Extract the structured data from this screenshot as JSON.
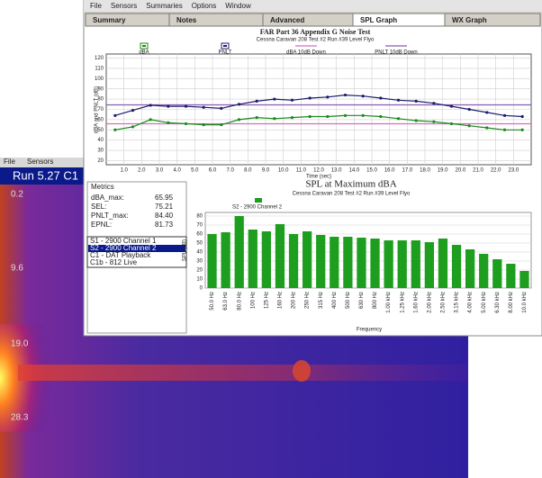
{
  "background_window": {
    "menu": [
      "File",
      "Sensors"
    ],
    "title": "Run 5.27 C1",
    "y_labels": [
      "0.2",
      "9.6",
      "19.0",
      "28.3"
    ]
  },
  "window": {
    "menu": [
      "File",
      "Sensors",
      "Summaries",
      "Options",
      "Window"
    ],
    "tabs": [
      "Summary",
      "Notes",
      "Advanced",
      "SPL Graph",
      "WX Graph"
    ]
  },
  "time_chart": {
    "type": "line",
    "title": "FAR Part 36 Appendix G Noise Test",
    "subtitle": "Cessna Caravan 208 Test #2 Run #39 Level Flyo",
    "y_label": "dBA and PNLT (dB)",
    "x_label": "Time (sec)",
    "xlim": [
      0,
      24
    ],
    "ylim": [
      16,
      124
    ],
    "yticks": [
      20,
      30,
      40,
      50,
      60,
      70,
      80,
      90,
      100,
      110,
      120
    ],
    "xticks": [
      {
        "value": 1,
        "label": "1.0"
      },
      {
        "value": 2,
        "label": "2.0"
      },
      {
        "value": 3,
        "label": "3.0"
      },
      {
        "value": 4,
        "label": "4.0"
      },
      {
        "value": 5,
        "label": "5.0"
      },
      {
        "value": 6,
        "label": "6.0"
      },
      {
        "value": 7,
        "label": "7.0"
      },
      {
        "value": 8,
        "label": "8.0"
      },
      {
        "value": 9,
        "label": "9.0"
      },
      {
        "value": 10,
        "label": "10.0"
      },
      {
        "value": 11,
        "label": "11.0"
      },
      {
        "value": 12,
        "label": "12.0"
      },
      {
        "value": 13,
        "label": "13.0"
      },
      {
        "value": 14,
        "label": "14.0"
      },
      {
        "value": 15,
        "label": "15.0"
      },
      {
        "value": 16,
        "label": "16.0"
      },
      {
        "value": 17,
        "label": "17.0"
      },
      {
        "value": 18,
        "label": "18.0"
      },
      {
        "value": 19,
        "label": "19.0"
      },
      {
        "value": 20,
        "label": "20.0"
      },
      {
        "value": 21,
        "label": "21.0"
      },
      {
        "value": 22,
        "label": "22.0"
      },
      {
        "value": 23,
        "label": "23.0"
      }
    ],
    "x": [
      0.5,
      1.5,
      2.5,
      3.5,
      4.5,
      5.5,
      6.5,
      7.5,
      8.5,
      9.5,
      10.5,
      11.5,
      12.5,
      13.5,
      14.5,
      15.5,
      16.5,
      17.5,
      18.5,
      19.5,
      20.5,
      21.5,
      22.5,
      23.5
    ],
    "series": [
      {
        "name": "dBA",
        "color": "#1a8a1a",
        "values": [
          50,
          53,
          60,
          57,
          56,
          55,
          55,
          60,
          62,
          61,
          62,
          63,
          63,
          64,
          64,
          63,
          61,
          59,
          58,
          56,
          54,
          52,
          50,
          50
        ]
      },
      {
        "name": "PNLT",
        "color": "#1c1c6e",
        "values": [
          64,
          69,
          74,
          73,
          73,
          72,
          71,
          75,
          78,
          80,
          79,
          81,
          82,
          84,
          83,
          81,
          79,
          78,
          76,
          73,
          70,
          67,
          64,
          63
        ]
      }
    ],
    "reference_lines": [
      {
        "name": "dBA 10dB Down",
        "color": "#d070c0",
        "value": 55.95
      },
      {
        "name": "PNLT 10dB Down",
        "color": "#8a5cb0",
        "value": 74.4
      }
    ]
  },
  "metrics": {
    "title": "Metrics",
    "rows": [
      [
        "dBA_max:",
        "65.95"
      ],
      [
        "SEL:",
        "75.21"
      ],
      [
        "PNLT_max:",
        "84.40"
      ],
      [
        "EPNL:",
        "81.73"
      ]
    ]
  },
  "channels": [
    "S1 - 2900 Channel 1",
    "S2 - 2900 Channel 2",
    "C1 - DAT Playback",
    "C1b - 812 Live"
  ],
  "bar_chart": {
    "type": "bar",
    "title": "SPL at Maximum dBA",
    "subtitle": "Cessna Caravan 208 Test #2 Run #39 Level Flyo",
    "legend": "S2 - 2900 Channel 2",
    "y_label": "SPL (dB)",
    "x_label": "Frequency",
    "color": "#1e9e1e",
    "ylim": [
      0,
      84
    ],
    "yticks": [
      0,
      10,
      20,
      30,
      40,
      50,
      60,
      70,
      80
    ],
    "categories": [
      "50.0 Hz",
      "63.0 Hz",
      "80.0 Hz",
      "100 Hz",
      "125 Hz",
      "160 Hz",
      "200 Hz",
      "250 Hz",
      "315 Hz",
      "400 Hz",
      "500 Hz",
      "630 Hz",
      "800 Hz",
      "1.00 kHz",
      "1.25 kHz",
      "1.60 kHz",
      "2.00 kHz",
      "2.50 kHz",
      "3.15 kHz",
      "4.00 kHz",
      "5.00 kHz",
      "6.30 kHz",
      "8.00 kHz",
      "10.0 kHz"
    ],
    "values": [
      60,
      62,
      80,
      65,
      63,
      71,
      60,
      63,
      59,
      57,
      57,
      56,
      55,
      53,
      53,
      53,
      51,
      55,
      48,
      43,
      38,
      32,
      27,
      19
    ]
  }
}
